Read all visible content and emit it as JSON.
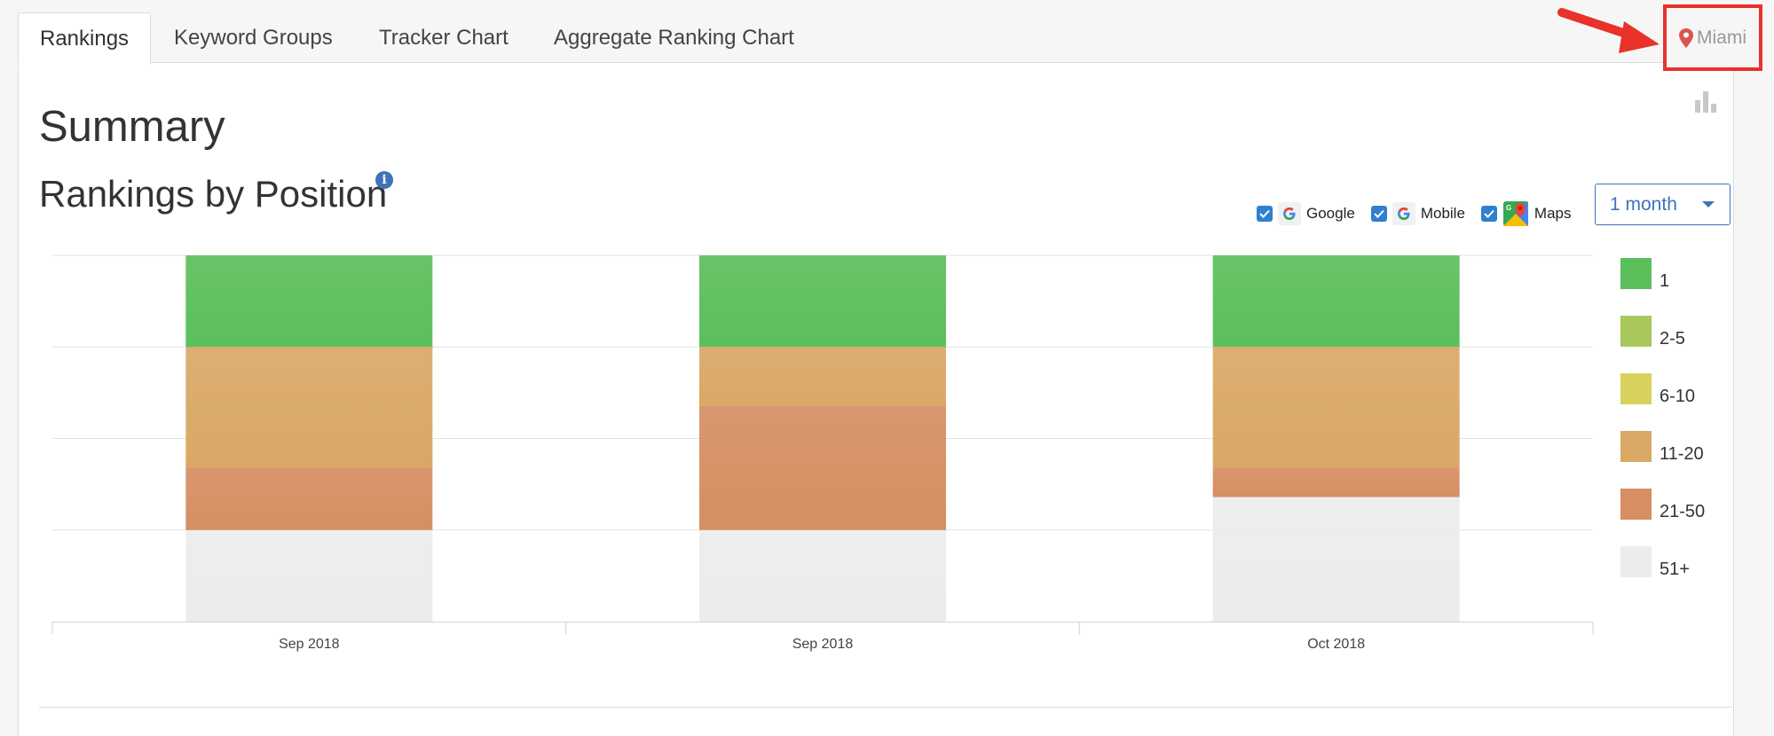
{
  "tabs": [
    {
      "label": "Rankings",
      "active": true
    },
    {
      "label": "Keyword Groups",
      "active": false
    },
    {
      "label": "Tracker Chart",
      "active": false
    },
    {
      "label": "Aggregate Ranking Chart",
      "active": false
    }
  ],
  "location": {
    "label": "Miami",
    "icon": "map-pin-icon",
    "color": "#d9534f"
  },
  "annotation": {
    "arrow_color": "#e8322a",
    "highlight_color": "#e8322a"
  },
  "summary_title": "Summary",
  "section_title": "Rankings by Position",
  "filters": [
    {
      "label": "Google",
      "checked": true,
      "icon": "google-icon"
    },
    {
      "label": "Mobile",
      "checked": true,
      "icon": "google-icon"
    },
    {
      "label": "Maps",
      "checked": true,
      "icon": "google-maps-icon"
    }
  ],
  "period_select": {
    "label": "1 month"
  },
  "legend": [
    {
      "label": "1",
      "color": "#5bbf5c"
    },
    {
      "label": "2-5",
      "color": "#a9c85c"
    },
    {
      "label": "6-10",
      "color": "#d8d15c"
    },
    {
      "label": "11-20",
      "color": "#d9a865"
    },
    {
      "label": "21-50",
      "color": "#d68e62"
    },
    {
      "label": "51+",
      "color": "#ececec"
    }
  ],
  "chart_data": {
    "type": "bar",
    "stacked": true,
    "categories": [
      "Sep 2018",
      "Sep 2018",
      "Oct 2018"
    ],
    "series": [
      {
        "name": "1",
        "values": [
          25,
          25,
          25
        ]
      },
      {
        "name": "2-5",
        "values": [
          0,
          0,
          0
        ]
      },
      {
        "name": "6-10",
        "values": [
          0,
          0,
          0
        ]
      },
      {
        "name": "11-20",
        "values": [
          33,
          16,
          33
        ]
      },
      {
        "name": "21-50",
        "values": [
          17,
          34,
          8
        ]
      },
      {
        "name": "51+",
        "values": [
          25,
          25,
          34
        ]
      }
    ],
    "ylim": [
      0,
      100
    ],
    "grid": true,
    "legend_position": "right"
  }
}
